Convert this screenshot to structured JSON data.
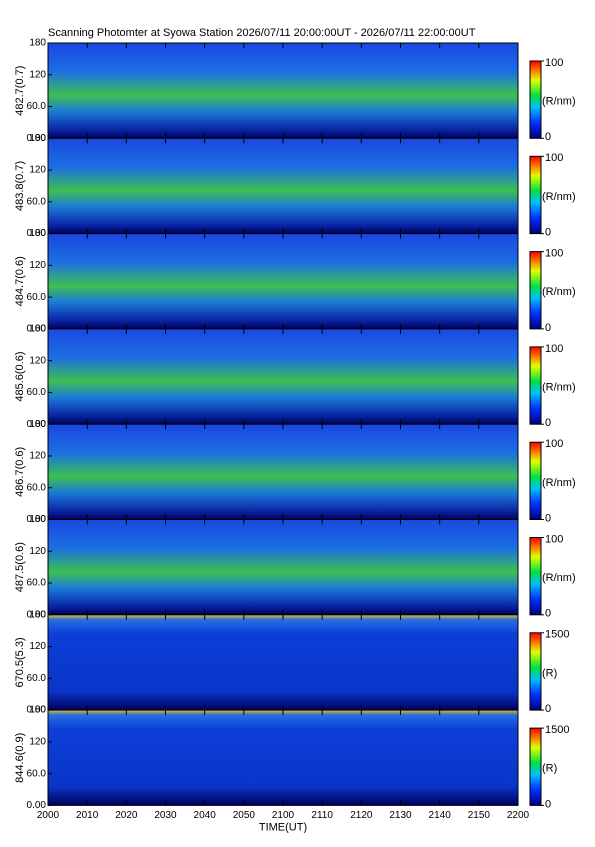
{
  "chart_data": [
    {
      "type": "heatmap",
      "title": "Scanning Photomter at Syowa Station 2026/07/11 20:00:00UT - 2026/07/11 22:00:00UT",
      "ylabel": "482.7(0.7)",
      "ylim": [
        0,
        180
      ],
      "yticks": [
        {
          "value": 0,
          "label": "0.00"
        },
        {
          "value": 60,
          "label": "60.0"
        },
        120,
        180
      ],
      "colorbar": {
        "label": "(R/nm)",
        "lim": [
          0,
          100
        ],
        "ticks": [
          0,
          100
        ]
      }
    },
    {
      "type": "heatmap",
      "ylabel": "483.8(0.7)",
      "ylim": [
        0,
        180
      ],
      "yticks": [
        {
          "value": 0,
          "label": "0.00"
        },
        {
          "value": 60,
          "label": "60.0"
        },
        120,
        180
      ],
      "colorbar": {
        "label": "(R/nm)",
        "lim": [
          0,
          100
        ],
        "ticks": [
          0,
          100
        ]
      }
    },
    {
      "type": "heatmap",
      "ylabel": "484.7(0.6)",
      "ylim": [
        0,
        180
      ],
      "yticks": [
        {
          "value": 0,
          "label": "0.00"
        },
        {
          "value": 60,
          "label": "60.0"
        },
        120,
        180
      ],
      "colorbar": {
        "label": "(R/nm)",
        "lim": [
          0,
          100
        ],
        "ticks": [
          0,
          100
        ]
      }
    },
    {
      "type": "heatmap",
      "ylabel": "485.6(0.6)",
      "ylim": [
        0,
        180
      ],
      "yticks": [
        {
          "value": 0,
          "label": "0.00"
        },
        {
          "value": 60,
          "label": "60.0"
        },
        120,
        180
      ],
      "colorbar": {
        "label": "(R/nm)",
        "lim": [
          0,
          100
        ],
        "ticks": [
          0,
          100
        ]
      }
    },
    {
      "type": "heatmap",
      "ylabel": "486.7(0.6)",
      "ylim": [
        0,
        180
      ],
      "yticks": [
        {
          "value": 0,
          "label": "0.00"
        },
        {
          "value": 60,
          "label": "60.0"
        },
        120,
        180
      ],
      "colorbar": {
        "label": "(R/nm)",
        "lim": [
          0,
          100
        ],
        "ticks": [
          0,
          100
        ]
      }
    },
    {
      "type": "heatmap",
      "ylabel": "487.5(0.6)",
      "ylim": [
        0,
        180
      ],
      "yticks": [
        {
          "value": 0,
          "label": "0.00"
        },
        {
          "value": 60,
          "label": "60.0"
        },
        120,
        180
      ],
      "colorbar": {
        "label": "(R/nm)",
        "lim": [
          0,
          100
        ],
        "ticks": [
          0,
          100
        ]
      }
    },
    {
      "type": "heatmap",
      "ylabel": "670.5(5.3)",
      "ylim": [
        0,
        180
      ],
      "yticks": [
        {
          "value": 0,
          "label": "0.00"
        },
        {
          "value": 60,
          "label": "60.0"
        },
        120,
        180
      ],
      "colorbar": {
        "label": "(R)",
        "lim": [
          0,
          1500
        ],
        "ticks": [
          0,
          1500
        ]
      }
    },
    {
      "type": "heatmap",
      "ylabel": "844.6(0.9)",
      "ylim": [
        0,
        180
      ],
      "yticks": [
        {
          "value": 0,
          "label": "0.00"
        },
        {
          "value": 60,
          "label": "60.0"
        },
        120,
        180
      ],
      "colorbar": {
        "label": "(R)",
        "lim": [
          0,
          1500
        ],
        "ticks": [
          0,
          1500
        ]
      },
      "xlabel": "TIME(UT)",
      "xlim": [
        "20:00",
        "22:00"
      ],
      "xticks": [
        {
          "value": "20:00",
          "label": "2000"
        },
        {
          "value": "20:10",
          "label": "2010"
        },
        {
          "value": "20:20",
          "label": "2020"
        },
        {
          "value": "20:30",
          "label": "2030"
        },
        {
          "value": "20:40",
          "label": "2040"
        },
        {
          "value": "20:50",
          "label": "2050"
        },
        {
          "value": "21:00",
          "label": "2100"
        },
        {
          "value": "21:10",
          "label": "2110"
        },
        {
          "value": "21:20",
          "label": "2120"
        },
        {
          "value": "21:30",
          "label": "2130"
        },
        {
          "value": "21:40",
          "label": "2140"
        },
        {
          "value": "21:50",
          "label": "2150"
        },
        {
          "value": "22:00",
          "label": "2200"
        }
      ]
    }
  ]
}
